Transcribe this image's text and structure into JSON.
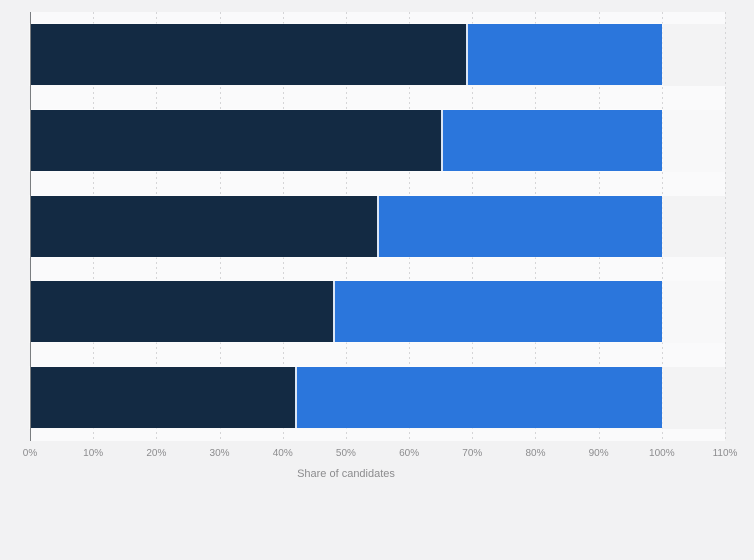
{
  "chart_data": {
    "type": "bar",
    "orientation": "horizontal",
    "stacked": true,
    "title": "",
    "xlabel": "Share of candidates",
    "ylabel": "",
    "xlim": [
      0,
      110
    ],
    "x_ticks": [
      "0%",
      "10%",
      "20%",
      "30%",
      "40%",
      "50%",
      "60%",
      "70%",
      "80%",
      "90%",
      "100%",
      "110%"
    ],
    "gridlines": "vertical-dashed",
    "legend": "none",
    "categories": [
      "",
      "",
      "",
      "",
      ""
    ],
    "series": [
      {
        "name": "dark-navy-segment",
        "color": "#132a43",
        "values": [
          69,
          65,
          55,
          48,
          42
        ]
      },
      {
        "name": "blue-segment",
        "color": "#2b76dc",
        "values": [
          31,
          35,
          45,
          52,
          58
        ]
      }
    ]
  },
  "colors": {
    "page_background": "#f2f2f3",
    "stripe_odd": "#f3f3f4",
    "stripe_even": "#f8f8f9",
    "gap_band": "#fafafb",
    "gridline": "#d5d5d7",
    "axis_line": "#7a7d80",
    "tick_text": "#8c8c8e",
    "axis_title_text": "#8c8c8e"
  }
}
